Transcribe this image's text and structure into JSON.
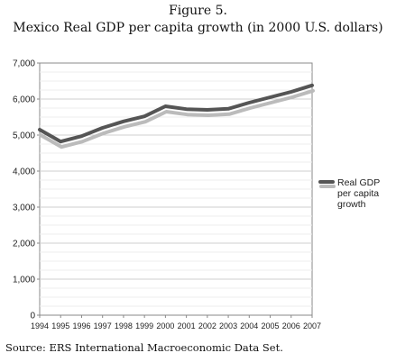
{
  "figure": {
    "number": "Figure 5.",
    "title_prefix": "Mexico Real ",
    "title_smallcaps": "GDP",
    "title_suffix": " per capita growth (in 2000 U.S. dollars)"
  },
  "source": {
    "prefix": "Source: ",
    "smallcaps": "ERS",
    "suffix": " International Macroeconomic Data Set."
  },
  "chart_data": {
    "type": "line",
    "x": [
      "1994",
      "1995",
      "1996",
      "1997",
      "1998",
      "1999",
      "2000",
      "2001",
      "2002",
      "2003",
      "2004",
      "2005",
      "2006",
      "2007"
    ],
    "series": [
      {
        "name": "Real GDP per capita growth",
        "values": [
          5150,
          4820,
          4970,
          5200,
          5380,
          5520,
          5800,
          5720,
          5700,
          5730,
          5900,
          6050,
          6200,
          6380
        ],
        "color": "#555555",
        "shadow_color": "#bbbbbb"
      }
    ],
    "legend": {
      "lines": [
        "Real GDP",
        "per capita",
        "growth"
      ],
      "placement": "right"
    },
    "ylim": [
      0,
      7000
    ],
    "yticks": [
      0,
      1000,
      2000,
      3000,
      4000,
      5000,
      6000,
      7000
    ],
    "ytick_labels": [
      "0",
      "1,000",
      "2,000",
      "3,000",
      "4,000",
      "5,000",
      "6,000",
      "7,000"
    ],
    "grid": true,
    "xlabel": "",
    "ylabel": ""
  }
}
